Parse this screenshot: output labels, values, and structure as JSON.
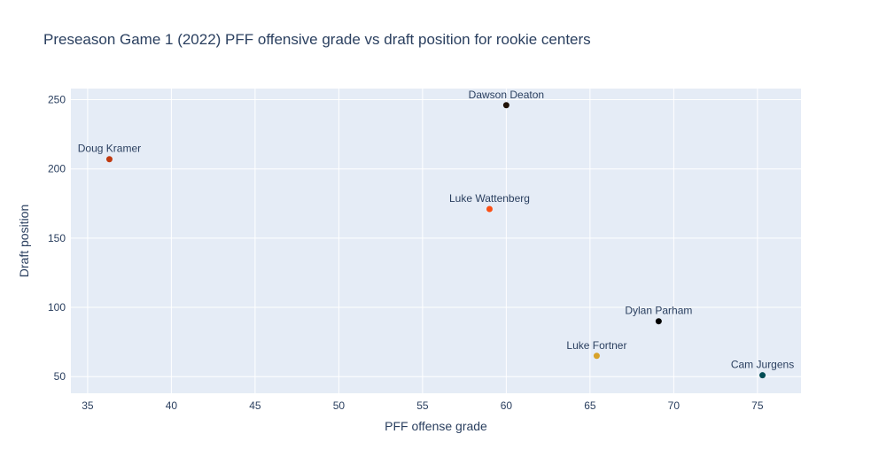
{
  "chart_data": {
    "type": "scatter",
    "title": "Preseason Game 1 (2022) PFF offensive grade vs draft position for rookie centers",
    "xlabel": "PFF offense grade",
    "ylabel": "Draft position",
    "xlim": [
      34,
      77.6
    ],
    "ylim": [
      38,
      258
    ],
    "xticks": [
      35,
      40,
      45,
      50,
      55,
      60,
      65,
      70,
      75
    ],
    "yticks": [
      50,
      100,
      150,
      200,
      250
    ],
    "grid": true,
    "legend": "none",
    "background_color": "#e5ecf6",
    "points": [
      {
        "name": "Doug Kramer",
        "x": 36.3,
        "y": 207,
        "color": "#c0390f"
      },
      {
        "name": "Dawson Deaton",
        "x": 60.0,
        "y": 246,
        "color": "#1f1208"
      },
      {
        "name": "Luke Wattenberg",
        "x": 59.0,
        "y": 171,
        "color": "#fb4f14"
      },
      {
        "name": "Dylan Parham",
        "x": 69.1,
        "y": 90,
        "color": "#000000"
      },
      {
        "name": "Luke Fortner",
        "x": 65.4,
        "y": 65,
        "color": "#d7a22a"
      },
      {
        "name": "Cam Jurgens",
        "x": 75.3,
        "y": 51,
        "color": "#004c54"
      }
    ]
  }
}
